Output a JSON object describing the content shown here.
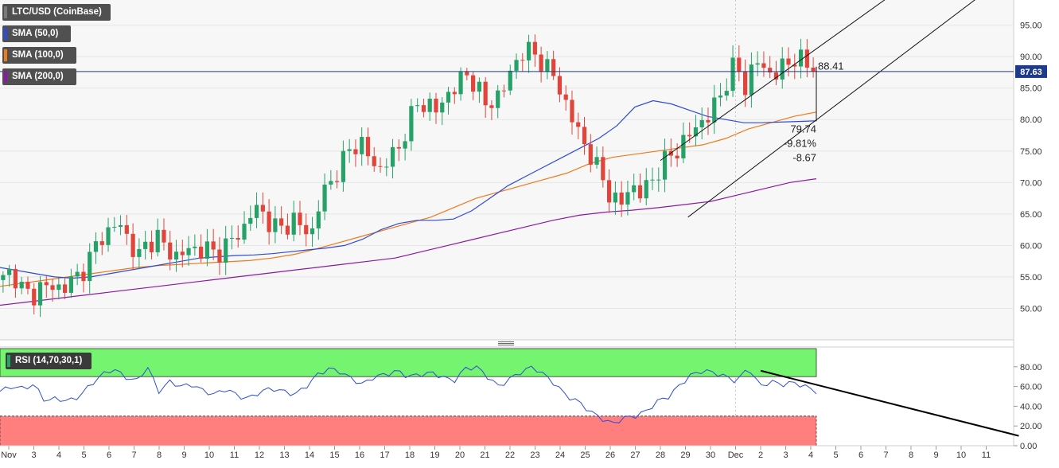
{
  "legends": {
    "main": "LTC/USD (CoinBase)",
    "sma50": "SMA (50,0)",
    "sma100": "SMA (100,0)",
    "sma200": "SMA (200,0)",
    "rsi": "RSI (14,70,30,1)"
  },
  "colors": {
    "up": "#26a269",
    "down": "#e0443a",
    "sma50": "#2f4bd6",
    "sma100": "#ef7a1a",
    "sma200": "#8a1aa3",
    "rsi_line": "#2f4bd6",
    "overbought": "#75f56f",
    "oversold": "#ff7f7f",
    "price_line": "#1e3a8a"
  },
  "chart_data": [
    {
      "type": "candlestick",
      "title": "LTC/USD (CoinBase)",
      "ylim": [
        45,
        99
      ],
      "y_ticks": [
        "95.00",
        "90.00",
        "85.00",
        "80.00",
        "75.00",
        "70.00",
        "65.00",
        "60.00",
        "55.00",
        "50.00"
      ],
      "x_ticks": [
        "Nov",
        "3",
        "4",
        "5",
        "6",
        "7",
        "8",
        "9",
        "10",
        "11",
        "12",
        "13",
        "14",
        "15",
        "16",
        "17",
        "18",
        "19",
        "20",
        "21",
        "22",
        "23",
        "24",
        "25",
        "26",
        "27",
        "28",
        "29",
        "30",
        "Dec",
        "2",
        "3",
        "4",
        "5",
        "6",
        "7",
        "8",
        "9",
        "10",
        "11"
      ],
      "current_price": "87.63",
      "annotations": {
        "high": "88.41",
        "low": "79.74",
        "pct": "-9.81%",
        "diff": "-8.67"
      },
      "close_path": [
        54.5,
        56,
        53,
        51.5,
        54,
        53,
        53.5,
        54,
        55.5,
        58,
        61,
        62.5,
        63.5,
        61,
        58,
        60.5,
        61.5,
        59,
        58.5,
        59,
        59.5,
        59.5,
        58.5,
        60,
        61,
        63,
        66,
        65,
        63,
        62.5,
        64.5,
        62.5,
        62,
        68,
        70,
        73,
        75,
        77,
        73.5,
        72,
        74,
        75,
        80,
        82,
        83,
        81,
        84,
        85.5,
        87,
        86,
        82,
        83.5,
        85,
        89,
        91,
        90.5,
        89,
        87,
        84,
        80,
        77,
        74,
        71,
        68,
        66,
        70,
        68,
        70,
        72,
        74,
        75.5,
        77,
        79.5,
        80,
        83,
        86,
        89,
        85,
        89.5,
        88,
        87,
        88.5,
        90,
        89,
        87.63
      ],
      "sma50": [
        56.5,
        56,
        55.5,
        55,
        54.8,
        55,
        55.5,
        56,
        56.5,
        57,
        57.5,
        58,
        58.2,
        58.4,
        58.5,
        58.7,
        59,
        59.3,
        59.6,
        60,
        61,
        62.5,
        63.5,
        64,
        64,
        64.2,
        65.5,
        67.5,
        69.5,
        71,
        72.5,
        74,
        75.5,
        77,
        79,
        82,
        83,
        82.5,
        81.5,
        80.5,
        80,
        79.5,
        79.5,
        79.6,
        79.7,
        79.8
      ],
      "sma100": [
        53.5,
        54,
        54.5,
        55,
        55.5,
        56,
        56.5,
        56.8,
        57,
        57.2,
        57.4,
        57.6,
        58,
        58.6,
        59.5,
        60.5,
        61.5,
        62.5,
        63.5,
        64.5,
        66,
        67.5,
        68.5,
        69.5,
        70.5,
        71.5,
        73,
        74,
        74.5,
        75,
        75.5,
        76,
        77,
        78.5,
        79.5,
        80.5,
        81.2
      ],
      "sma200": [
        50.5,
        51,
        51.5,
        52,
        52.5,
        53,
        53.5,
        54,
        54.5,
        55,
        55.5,
        56,
        56.5,
        57,
        57.5,
        58,
        59,
        60,
        61,
        62,
        63,
        64,
        64.8,
        65.3,
        65.6,
        66,
        66.5,
        67,
        68,
        69,
        70,
        70.6
      ],
      "channel": {
        "upper": [
          [
            26,
            73.5
          ],
          [
            39.5,
            112
          ]
        ],
        "lower": [
          [
            27.1,
            64.5
          ],
          [
            40.2,
            104
          ]
        ]
      }
    },
    {
      "type": "line",
      "title": "RSI (14,70,30,1)",
      "ylim": [
        0,
        100
      ],
      "y_ticks": [
        "80.00",
        "60.00",
        "40.00",
        "20.00",
        "0.00"
      ],
      "overbought": 70,
      "oversold": 30,
      "values": [
        55,
        60,
        58,
        62,
        45,
        48,
        45,
        50,
        62,
        72,
        78,
        70,
        65,
        80,
        55,
        65,
        60,
        62,
        55,
        52,
        58,
        50,
        48,
        55,
        58,
        55,
        52,
        60,
        72,
        78,
        75,
        68,
        62,
        70,
        72,
        76,
        70,
        72,
        74,
        70,
        65,
        78,
        80,
        70,
        60,
        68,
        75,
        80,
        72,
        62,
        50,
        45,
        35,
        28,
        22,
        28,
        30,
        35,
        45,
        50,
        62,
        72,
        76,
        74,
        70,
        65,
        80,
        60,
        65,
        62,
        64,
        60,
        55
      ],
      "trendline": [
        [
          30,
          76
        ],
        [
          40.3,
          10
        ]
      ]
    }
  ]
}
